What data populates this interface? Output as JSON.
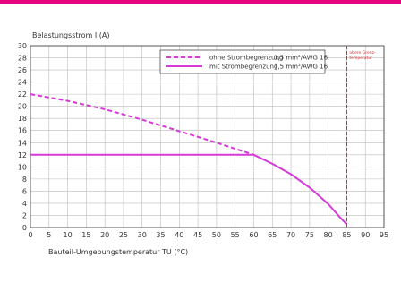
{
  "colors": {
    "accent": "#e6007e",
    "series": "#d63ad6",
    "limit": "#d62828",
    "grid": "#bbbbbb"
  },
  "chart_data": {
    "type": "line",
    "xlabel": "Bauteil-Umgebungstemperatur TU (°C)",
    "ylabel": "Belastungsstrom I (A)",
    "xlim": [
      0,
      95
    ],
    "ylim": [
      0,
      30
    ],
    "x_ticks": [
      0,
      5,
      10,
      15,
      20,
      25,
      30,
      35,
      40,
      45,
      50,
      55,
      60,
      65,
      70,
      75,
      80,
      85,
      90,
      95
    ],
    "y_ticks": [
      0,
      2,
      4,
      6,
      8,
      10,
      12,
      14,
      16,
      18,
      20,
      22,
      24,
      26,
      28,
      30
    ],
    "grid": true,
    "legend_position": "top-center",
    "series": [
      {
        "name": "ohne Strombegrenzung",
        "spec": "1,5 mm²/AWG 16",
        "style": "dashed",
        "x": [
          0,
          10,
          20,
          30,
          40,
          50,
          60
        ],
        "y": [
          22,
          20.9,
          19.5,
          17.8,
          15.9,
          14.0,
          12.0
        ]
      },
      {
        "name": "mit Strombegrenzung",
        "spec": "1,5 mm²/AWG 16",
        "style": "solid",
        "x": [
          0,
          60,
          65,
          70,
          75,
          80,
          83,
          85
        ],
        "y": [
          12,
          12,
          10.5,
          8.8,
          6.6,
          3.9,
          1.8,
          0.5
        ]
      }
    ],
    "annotations": [
      {
        "type": "vertical-line",
        "x": 85,
        "style": "dashed",
        "text_lines": [
          "obere Grenz-",
          "temperatur"
        ]
      }
    ]
  }
}
